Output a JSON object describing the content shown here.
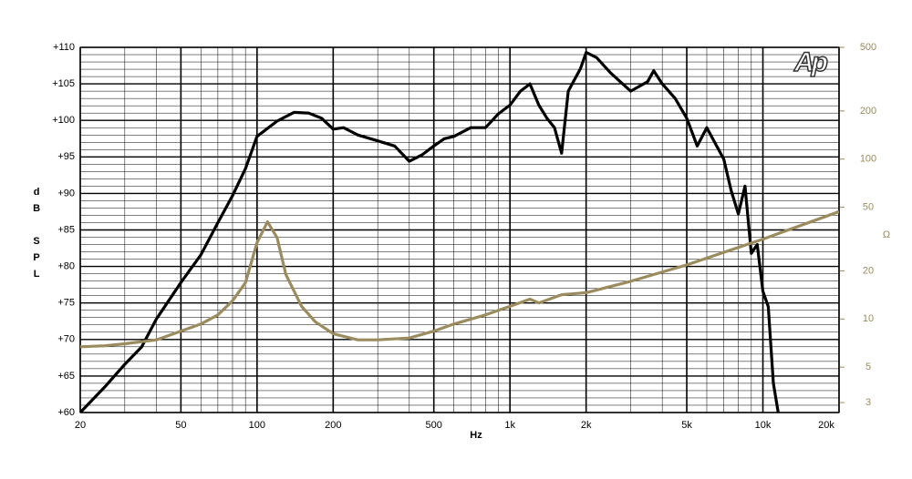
{
  "chart_data": {
    "type": "line",
    "logo": "Ap",
    "xlabel": "Hz",
    "ylabel": "dB SPL",
    "y2label": "Ω",
    "xscale": "log",
    "y2scale": "log",
    "grid": true,
    "xlim": [
      20,
      20000
    ],
    "xticks": [
      20,
      50,
      100,
      200,
      500,
      {
        "value": 1000,
        "label": "1k"
      },
      {
        "value": 2000,
        "label": "2k"
      },
      {
        "value": 5000,
        "label": "5k"
      },
      {
        "value": 10000,
        "label": "10k"
      },
      {
        "value": 20000,
        "label": "20k"
      }
    ],
    "ylim": [
      60,
      110
    ],
    "yticks": [
      {
        "value": 60,
        "label": "+60"
      },
      {
        "value": 65,
        "label": "+65"
      },
      {
        "value": 70,
        "label": "+70"
      },
      {
        "value": 75,
        "label": "+75"
      },
      {
        "value": 80,
        "label": "+80"
      },
      {
        "value": 85,
        "label": "+85"
      },
      {
        "value": 90,
        "label": "+90"
      },
      {
        "value": 95,
        "label": "+95"
      },
      {
        "value": 100,
        "label": "+100"
      },
      {
        "value": 105,
        "label": "+105"
      },
      {
        "value": 110,
        "label": "+110"
      }
    ],
    "y2lim": [
      2.6,
      500
    ],
    "y2ticks": [
      3,
      5,
      10,
      20,
      50,
      100,
      200,
      500
    ],
    "series": [
      {
        "color": "#000000",
        "x": [
          20,
          25,
          30,
          35,
          40,
          50,
          60,
          70,
          80,
          90,
          100,
          120,
          140,
          160,
          180,
          200,
          220,
          250,
          300,
          350,
          400,
          450,
          500,
          550,
          600,
          700,
          800,
          900,
          1000,
          1100,
          1200,
          1300,
          1400,
          1500,
          1600,
          1700,
          1900,
          2000,
          2200,
          2500,
          3000,
          3500,
          3700,
          4000,
          4500,
          5000,
          5500,
          6000,
          7000,
          7500,
          8000,
          8500,
          9000,
          9500,
          10000,
          10500,
          11000,
          11500
        ],
        "values": [
          60,
          63.5,
          66.6,
          69,
          72.8,
          77.8,
          81.6,
          86,
          89.7,
          93.4,
          97.8,
          99.9,
          101.1,
          101,
          100.3,
          98.8,
          99,
          98,
          97.2,
          96.5,
          94.4,
          95.3,
          96.5,
          97.5,
          97.8,
          99,
          99,
          100.9,
          102.1,
          104,
          105,
          102.1,
          100.3,
          99,
          95.5,
          104,
          107.1,
          109.3,
          108.6,
          106.5,
          104,
          105.3,
          106.8,
          105,
          103,
          100.3,
          96.5,
          99,
          94.7,
          90.3,
          87.2,
          91,
          81.8,
          83,
          76.6,
          74.5,
          64,
          60
        ]
      },
      {
        "color": "#9a8c5e",
        "axis": "y2",
        "x": [
          20,
          25,
          30,
          40,
          50,
          60,
          70,
          80,
          90,
          100,
          110,
          120,
          130,
          150,
          170,
          200,
          250,
          300,
          400,
          500,
          600,
          800,
          1000,
          1200,
          1300,
          1600,
          2000,
          3000,
          5000,
          10000,
          20000
        ],
        "values": [
          6.7,
          6.8,
          7.0,
          7.4,
          8.4,
          9.3,
          10.6,
          13,
          16.9,
          30,
          40.5,
          32.3,
          19,
          12,
          9.6,
          8.1,
          7.4,
          7.4,
          7.6,
          8.4,
          9.3,
          10.6,
          12,
          13.3,
          12.6,
          14.2,
          14.6,
          17.2,
          21.8,
          31.6,
          46.9
        ]
      }
    ]
  }
}
